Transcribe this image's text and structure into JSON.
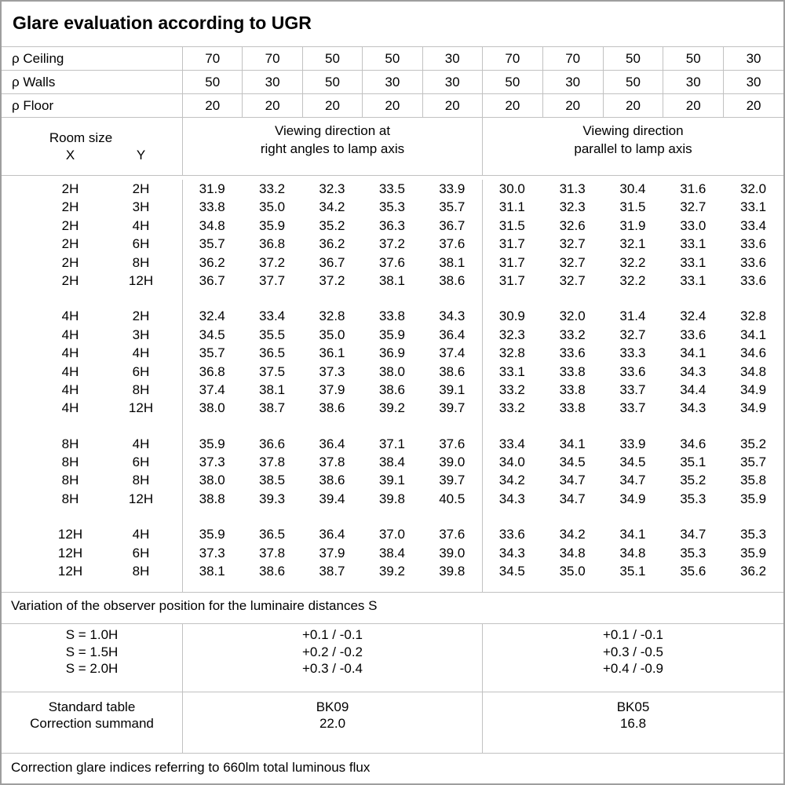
{
  "title": "Glare evaluation according to UGR",
  "reflectances": {
    "rows": [
      {
        "label": "ρ Ceiling",
        "values": [
          "70",
          "70",
          "50",
          "50",
          "30",
          "70",
          "70",
          "50",
          "50",
          "30"
        ]
      },
      {
        "label": "ρ Walls",
        "values": [
          "50",
          "30",
          "50",
          "30",
          "30",
          "50",
          "30",
          "50",
          "30",
          "30"
        ]
      },
      {
        "label": "ρ Floor",
        "values": [
          "20",
          "20",
          "20",
          "20",
          "20",
          "20",
          "20",
          "20",
          "20",
          "20"
        ]
      }
    ]
  },
  "header": {
    "room_size_label": "Room size",
    "x_label": "X",
    "y_label": "Y",
    "group1_line1": "Viewing direction at",
    "group1_line2": "right angles to lamp axis",
    "group2_line1": "Viewing direction",
    "group2_line2": "parallel to lamp axis"
  },
  "ugr_blocks": [
    {
      "rows": [
        {
          "x": "2H",
          "y": "2H",
          "right_angles": [
            "31.9",
            "33.2",
            "32.3",
            "33.5",
            "33.9"
          ],
          "parallel": [
            "30.0",
            "31.3",
            "30.4",
            "31.6",
            "32.0"
          ]
        },
        {
          "x": "2H",
          "y": "3H",
          "right_angles": [
            "33.8",
            "35.0",
            "34.2",
            "35.3",
            "35.7"
          ],
          "parallel": [
            "31.1",
            "32.3",
            "31.5",
            "32.7",
            "33.1"
          ]
        },
        {
          "x": "2H",
          "y": "4H",
          "right_angles": [
            "34.8",
            "35.9",
            "35.2",
            "36.3",
            "36.7"
          ],
          "parallel": [
            "31.5",
            "32.6",
            "31.9",
            "33.0",
            "33.4"
          ]
        },
        {
          "x": "2H",
          "y": "6H",
          "right_angles": [
            "35.7",
            "36.8",
            "36.2",
            "37.2",
            "37.6"
          ],
          "parallel": [
            "31.7",
            "32.7",
            "32.1",
            "33.1",
            "33.6"
          ]
        },
        {
          "x": "2H",
          "y": "8H",
          "right_angles": [
            "36.2",
            "37.2",
            "36.7",
            "37.6",
            "38.1"
          ],
          "parallel": [
            "31.7",
            "32.7",
            "32.2",
            "33.1",
            "33.6"
          ]
        },
        {
          "x": "2H",
          "y": "12H",
          "right_angles": [
            "36.7",
            "37.7",
            "37.2",
            "38.1",
            "38.6"
          ],
          "parallel": [
            "31.7",
            "32.7",
            "32.2",
            "33.1",
            "33.6"
          ]
        }
      ]
    },
    {
      "rows": [
        {
          "x": "4H",
          "y": "2H",
          "right_angles": [
            "32.4",
            "33.4",
            "32.8",
            "33.8",
            "34.3"
          ],
          "parallel": [
            "30.9",
            "32.0",
            "31.4",
            "32.4",
            "32.8"
          ]
        },
        {
          "x": "4H",
          "y": "3H",
          "right_angles": [
            "34.5",
            "35.5",
            "35.0",
            "35.9",
            "36.4"
          ],
          "parallel": [
            "32.3",
            "33.2",
            "32.7",
            "33.6",
            "34.1"
          ]
        },
        {
          "x": "4H",
          "y": "4H",
          "right_angles": [
            "35.7",
            "36.5",
            "36.1",
            "36.9",
            "37.4"
          ],
          "parallel": [
            "32.8",
            "33.6",
            "33.3",
            "34.1",
            "34.6"
          ]
        },
        {
          "x": "4H",
          "y": "6H",
          "right_angles": [
            "36.8",
            "37.5",
            "37.3",
            "38.0",
            "38.6"
          ],
          "parallel": [
            "33.1",
            "33.8",
            "33.6",
            "34.3",
            "34.8"
          ]
        },
        {
          "x": "4H",
          "y": "8H",
          "right_angles": [
            "37.4",
            "38.1",
            "37.9",
            "38.6",
            "39.1"
          ],
          "parallel": [
            "33.2",
            "33.8",
            "33.7",
            "34.4",
            "34.9"
          ]
        },
        {
          "x": "4H",
          "y": "12H",
          "right_angles": [
            "38.0",
            "38.7",
            "38.6",
            "39.2",
            "39.7"
          ],
          "parallel": [
            "33.2",
            "33.8",
            "33.7",
            "34.3",
            "34.9"
          ]
        }
      ]
    },
    {
      "rows": [
        {
          "x": "8H",
          "y": "4H",
          "right_angles": [
            "35.9",
            "36.6",
            "36.4",
            "37.1",
            "37.6"
          ],
          "parallel": [
            "33.4",
            "34.1",
            "33.9",
            "34.6",
            "35.2"
          ]
        },
        {
          "x": "8H",
          "y": "6H",
          "right_angles": [
            "37.3",
            "37.8",
            "37.8",
            "38.4",
            "39.0"
          ],
          "parallel": [
            "34.0",
            "34.5",
            "34.5",
            "35.1",
            "35.7"
          ]
        },
        {
          "x": "8H",
          "y": "8H",
          "right_angles": [
            "38.0",
            "38.5",
            "38.6",
            "39.1",
            "39.7"
          ],
          "parallel": [
            "34.2",
            "34.7",
            "34.7",
            "35.2",
            "35.8"
          ]
        },
        {
          "x": "8H",
          "y": "12H",
          "right_angles": [
            "38.8",
            "39.3",
            "39.4",
            "39.8",
            "40.5"
          ],
          "parallel": [
            "34.3",
            "34.7",
            "34.9",
            "35.3",
            "35.9"
          ]
        }
      ]
    },
    {
      "rows": [
        {
          "x": "12H",
          "y": "4H",
          "right_angles": [
            "35.9",
            "36.5",
            "36.4",
            "37.0",
            "37.6"
          ],
          "parallel": [
            "33.6",
            "34.2",
            "34.1",
            "34.7",
            "35.3"
          ]
        },
        {
          "x": "12H",
          "y": "6H",
          "right_angles": [
            "37.3",
            "37.8",
            "37.9",
            "38.4",
            "39.0"
          ],
          "parallel": [
            "34.3",
            "34.8",
            "34.8",
            "35.3",
            "35.9"
          ]
        },
        {
          "x": "12H",
          "y": "8H",
          "right_angles": [
            "38.1",
            "38.6",
            "38.7",
            "39.2",
            "39.8"
          ],
          "parallel": [
            "34.5",
            "35.0",
            "35.1",
            "35.6",
            "36.2"
          ]
        }
      ]
    }
  ],
  "variation_note": "Variation of the observer position for the luminaire distances S",
  "spacing_rows": [
    {
      "label": "S = 1.0H",
      "right_angles": "+0.1 / -0.1",
      "parallel": "+0.1 / -0.1"
    },
    {
      "label": "S = 1.5H",
      "right_angles": "+0.2 / -0.2",
      "parallel": "+0.3 / -0.5"
    },
    {
      "label": "S = 2.0H",
      "right_angles": "+0.3 / -0.4",
      "parallel": "+0.4 / -0.9"
    }
  ],
  "standard": {
    "table_label": "Standard table",
    "summand_label": "Correction summand",
    "table_right_angles": "BK09",
    "table_parallel": "BK05",
    "summand_right_angles": "22.0",
    "summand_parallel": "16.8"
  },
  "footer_note": "Correction glare indices referring to 660lm total luminous flux",
  "colors": {
    "grid_line": "#c1c1c1",
    "outer_border": "#9e9e9e",
    "text": "#000000",
    "background": "#ffffff"
  }
}
